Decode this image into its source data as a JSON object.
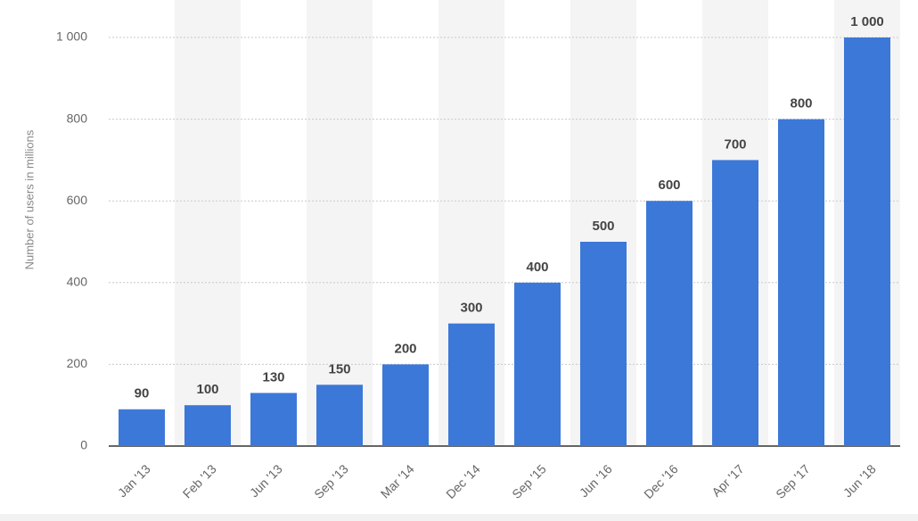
{
  "chart_data": {
    "type": "bar",
    "y_label": "Number of users in millions",
    "categories": [
      "Jan '13",
      "Feb '13",
      "Jun '13",
      "Sep '13",
      "Mar '14",
      "Dec '14",
      "Sep '15",
      "Jun '16",
      "Dec '16",
      "Apr '17",
      "Sep '17",
      "Jun '18"
    ],
    "values": [
      90,
      100,
      130,
      150,
      200,
      300,
      400,
      500,
      600,
      700,
      800,
      1000
    ],
    "value_labels": [
      "90",
      "100",
      "130",
      "150",
      "200",
      "300",
      "400",
      "500",
      "600",
      "700",
      "800",
      "1 000"
    ],
    "color": "#3c78d8",
    "ylim": [
      0,
      1000
    ],
    "yticks": [
      0,
      200,
      400,
      600,
      800,
      {
        "value": 1000,
        "label": "1 000"
      }
    ],
    "grid": true
  }
}
